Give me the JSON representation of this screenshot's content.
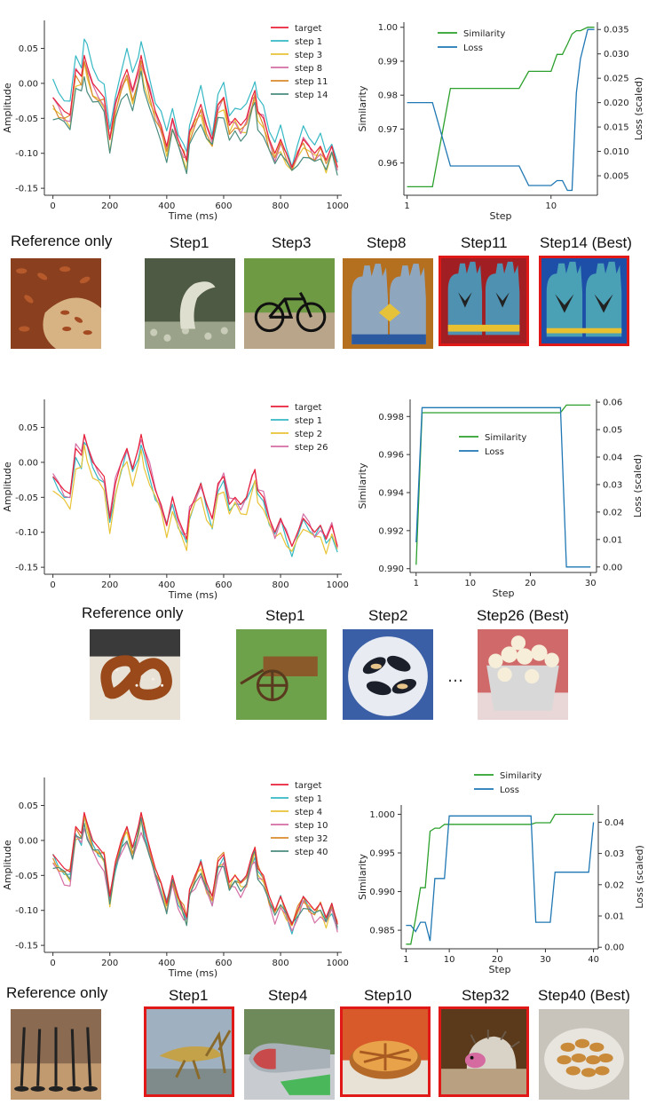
{
  "chart_data": [
    {
      "type": "line",
      "title": "",
      "xlabel": "Time (ms)",
      "ylabel": "Amplitude",
      "xlim": [
        -30,
        1015
      ],
      "ylim": [
        -0.16,
        0.09
      ],
      "xticks": [
        "0",
        "200",
        "400",
        "600",
        "800",
        "1000"
      ],
      "yticks": [
        "0.05",
        "0.00",
        "-0.05",
        "-0.10",
        "-0.15"
      ],
      "legend_position": "upper-right",
      "series": [
        {
          "name": "target",
          "color": "#e8203a"
        },
        {
          "name": "step 1",
          "color": "#35b8c4"
        },
        {
          "name": "step 3",
          "color": "#e8c336"
        },
        {
          "name": "step 8",
          "color": "#d56ea5"
        },
        {
          "name": "step 11",
          "color": "#d98a2b"
        },
        {
          "name": "step 14",
          "color": "#4a8c7e"
        }
      ],
      "x": [
        0,
        20,
        40,
        60,
        80,
        100,
        110,
        120,
        140,
        160,
        180,
        200,
        220,
        240,
        260,
        280,
        300,
        310,
        320,
        340,
        360,
        380,
        400,
        420,
        440,
        460,
        470,
        480,
        500,
        520,
        540,
        560,
        580,
        600,
        620,
        640,
        660,
        680,
        700,
        710,
        720,
        740,
        760,
        780,
        800,
        820,
        840,
        860,
        880,
        900,
        920,
        940,
        960,
        980,
        1000
      ],
      "target_values": [
        -0.02,
        -0.03,
        -0.04,
        -0.045,
        0.02,
        0.01,
        0.04,
        0.025,
        0.0,
        -0.01,
        -0.02,
        -0.08,
        -0.03,
        0.0,
        0.02,
        -0.01,
        0.02,
        0.04,
        0.02,
        -0.01,
        -0.04,
        -0.06,
        -0.09,
        -0.05,
        -0.08,
        -0.1,
        -0.11,
        -0.07,
        -0.05,
        -0.03,
        -0.06,
        -0.08,
        -0.03,
        -0.02,
        -0.06,
        -0.05,
        -0.06,
        -0.05,
        -0.02,
        -0.01,
        -0.04,
        -0.05,
        -0.08,
        -0.1,
        -0.08,
        -0.1,
        -0.12,
        -0.1,
        -0.08,
        -0.09,
        -0.1,
        -0.09,
        -0.11,
        -0.09,
        -0.12
      ],
      "offsets": [
        0.0,
        0.02,
        -0.015,
        -0.005,
        -0.01,
        -0.025
      ]
    },
    {
      "type": "line",
      "title": "",
      "xlabel": "Step",
      "ylabel": "Similarity",
      "y2label": "Loss (scaled)",
      "xscale": "log",
      "xticks": [
        "1",
        "10"
      ],
      "yticks": [
        "0.96",
        "0.97",
        "0.98",
        "0.99",
        "1.00"
      ],
      "y2ticks": [
        "0.005",
        "0.010",
        "0.015",
        "0.020",
        "0.025",
        "0.030",
        "0.035"
      ],
      "ylim": [
        0.9505,
        1.0015
      ],
      "y2lim": [
        0.001,
        0.0365
      ],
      "legend_position": "upper-center",
      "series": [
        {
          "name": "Similarity",
          "color": "#2ca02c",
          "axis": "left",
          "x": [
            1,
            1.5,
            2,
            3,
            4,
            5,
            6,
            7,
            8,
            9,
            10,
            11,
            12,
            13,
            14,
            15,
            16,
            18,
            20
          ],
          "values": [
            0.953,
            0.953,
            0.982,
            0.982,
            0.982,
            0.982,
            0.982,
            0.987,
            0.987,
            0.987,
            0.987,
            0.992,
            0.992,
            0.995,
            0.998,
            0.999,
            0.999,
            1.0,
            1.0
          ]
        },
        {
          "name": "Loss",
          "color": "#1f77b4",
          "axis": "right",
          "x": [
            1,
            1.5,
            2,
            3,
            4,
            5,
            6,
            7,
            8,
            9,
            10,
            11,
            12,
            13,
            14,
            15,
            16,
            18,
            20
          ],
          "values": [
            0.02,
            0.02,
            0.007,
            0.007,
            0.007,
            0.007,
            0.007,
            0.003,
            0.003,
            0.003,
            0.003,
            0.004,
            0.004,
            0.002,
            0.002,
            0.022,
            0.029,
            0.035,
            0.035
          ]
        }
      ]
    },
    {
      "type": "line",
      "title": "",
      "xlabel": "Time (ms)",
      "ylabel": "Amplitude",
      "xlim": [
        -30,
        1015
      ],
      "ylim": [
        -0.16,
        0.09
      ],
      "xticks": [
        "0",
        "200",
        "400",
        "600",
        "800",
        "1000"
      ],
      "yticks": [
        "0.05",
        "0.00",
        "-0.05",
        "-0.10",
        "-0.15"
      ],
      "legend_position": "upper-right",
      "series": [
        {
          "name": "target",
          "color": "#e8203a"
        },
        {
          "name": "step 1",
          "color": "#35b8c4"
        },
        {
          "name": "step 2",
          "color": "#e8c336"
        },
        {
          "name": "step 26",
          "color": "#d56ea5"
        }
      ],
      "x": [
        0,
        20,
        40,
        60,
        80,
        100,
        110,
        120,
        140,
        160,
        180,
        200,
        220,
        240,
        260,
        280,
        300,
        310,
        320,
        340,
        360,
        380,
        400,
        420,
        440,
        460,
        470,
        480,
        500,
        520,
        540,
        560,
        580,
        600,
        620,
        640,
        660,
        680,
        700,
        710,
        720,
        740,
        760,
        780,
        800,
        820,
        840,
        860,
        880,
        900,
        920,
        940,
        960,
        980,
        1000
      ],
      "target_values": [
        -0.02,
        -0.03,
        -0.04,
        -0.045,
        0.02,
        0.01,
        0.04,
        0.025,
        0.0,
        -0.01,
        -0.02,
        -0.08,
        -0.03,
        0.0,
        0.02,
        -0.01,
        0.02,
        0.04,
        0.02,
        -0.01,
        -0.04,
        -0.06,
        -0.09,
        -0.05,
        -0.08,
        -0.1,
        -0.11,
        -0.07,
        -0.05,
        -0.03,
        -0.06,
        -0.08,
        -0.03,
        -0.02,
        -0.06,
        -0.05,
        -0.06,
        -0.05,
        -0.02,
        -0.01,
        -0.04,
        -0.05,
        -0.08,
        -0.1,
        -0.08,
        -0.1,
        -0.12,
        -0.1,
        -0.08,
        -0.09,
        -0.1,
        -0.09,
        -0.11,
        -0.09,
        -0.12
      ],
      "offsets": [
        0.0,
        -0.01,
        -0.02,
        0.0
      ]
    },
    {
      "type": "line",
      "title": "",
      "xlabel": "Step",
      "ylabel": "Similarity",
      "y2label": "Loss (scaled)",
      "xticks": [
        "1",
        "10",
        "20",
        "30"
      ],
      "yticks": [
        "0.990",
        "0.992",
        "0.994",
        "0.996",
        "0.998"
      ],
      "y2ticks": [
        "0.00",
        "0.01",
        "0.02",
        "0.03",
        "0.04",
        "0.05",
        "0.06"
      ],
      "xlim": [
        0,
        31
      ],
      "ylim": [
        0.9898,
        0.9989
      ],
      "y2lim": [
        -0.002,
        0.061
      ],
      "legend_position": "center",
      "series": [
        {
          "name": "Similarity",
          "color": "#2ca02c",
          "axis": "left",
          "x": [
            1,
            2,
            3,
            25,
            26,
            30
          ],
          "values": [
            0.9902,
            0.9982,
            0.9982,
            0.9982,
            0.9986,
            0.9986
          ]
        },
        {
          "name": "Loss",
          "color": "#1f77b4",
          "axis": "right",
          "x": [
            1,
            2,
            3,
            25,
            26,
            30
          ],
          "values": [
            0.009,
            0.058,
            0.058,
            0.058,
            0.0,
            0.0
          ]
        }
      ]
    },
    {
      "type": "line",
      "title": "",
      "xlabel": "Time (ms)",
      "ylabel": "Amplitude",
      "xlim": [
        -30,
        1015
      ],
      "ylim": [
        -0.16,
        0.09
      ],
      "xticks": [
        "0",
        "200",
        "400",
        "600",
        "800",
        "1000"
      ],
      "yticks": [
        "0.05",
        "0.00",
        "-0.05",
        "-0.10",
        "-0.15"
      ],
      "legend_position": "upper-right",
      "series": [
        {
          "name": "target",
          "color": "#e8203a"
        },
        {
          "name": "step 1",
          "color": "#35b8c4"
        },
        {
          "name": "step 4",
          "color": "#e8c336"
        },
        {
          "name": "step 10",
          "color": "#d56ea5"
        },
        {
          "name": "step 32",
          "color": "#d98a2b"
        },
        {
          "name": "step 40",
          "color": "#4a8c7e"
        }
      ],
      "x": [
        0,
        20,
        40,
        60,
        80,
        100,
        110,
        120,
        140,
        160,
        180,
        200,
        220,
        240,
        260,
        280,
        300,
        310,
        320,
        340,
        360,
        380,
        400,
        420,
        440,
        460,
        470,
        480,
        500,
        520,
        540,
        560,
        580,
        600,
        620,
        640,
        660,
        680,
        700,
        710,
        720,
        740,
        760,
        780,
        800,
        820,
        840,
        860,
        880,
        900,
        920,
        940,
        960,
        980,
        1000
      ],
      "target_values": [
        -0.02,
        -0.03,
        -0.04,
        -0.045,
        0.02,
        0.01,
        0.04,
        0.025,
        0.0,
        -0.01,
        -0.02,
        -0.08,
        -0.03,
        0.0,
        0.02,
        -0.01,
        0.02,
        0.04,
        0.02,
        -0.01,
        -0.04,
        -0.06,
        -0.09,
        -0.05,
        -0.08,
        -0.1,
        -0.11,
        -0.07,
        -0.05,
        -0.03,
        -0.06,
        -0.08,
        -0.03,
        -0.02,
        -0.06,
        -0.05,
        -0.06,
        -0.05,
        -0.02,
        -0.01,
        -0.04,
        -0.05,
        -0.08,
        -0.1,
        -0.08,
        -0.1,
        -0.12,
        -0.1,
        -0.08,
        -0.09,
        -0.1,
        -0.09,
        -0.11,
        -0.09,
        -0.12
      ],
      "offsets": [
        0.0,
        -0.008,
        -0.01,
        -0.018,
        -0.004,
        -0.012
      ]
    },
    {
      "type": "line",
      "title": "",
      "xlabel": "Step",
      "ylabel": "Similarity",
      "y2label": "Loss (scaled)",
      "xticks": [
        "1",
        "10",
        "20",
        "30",
        "40"
      ],
      "yticks": [
        "0.985",
        "0.990",
        "0.995",
        "1.000"
      ],
      "y2ticks": [
        "0.00",
        "0.01",
        "0.02",
        "0.03",
        "0.04"
      ],
      "xlim": [
        0,
        41
      ],
      "ylim": [
        0.9826,
        1.0012
      ],
      "y2lim": [
        -0.0005,
        0.0455
      ],
      "legend_position": "upper-right-outside",
      "series": [
        {
          "name": "Similarity",
          "color": "#2ca02c",
          "axis": "left",
          "x": [
            1,
            2,
            3,
            4,
            5,
            6,
            7,
            8,
            9,
            10,
            27,
            28,
            31,
            32,
            40
          ],
          "values": [
            0.9832,
            0.9832,
            0.9865,
            0.9905,
            0.9905,
            0.9978,
            0.9982,
            0.9982,
            0.9987,
            0.9987,
            0.9987,
            0.9989,
            0.9989,
            1.0,
            1.0
          ]
        },
        {
          "name": "Loss",
          "color": "#1f77b4",
          "axis": "right",
          "x": [
            1,
            2,
            3,
            4,
            5,
            6,
            7,
            8,
            9,
            10,
            27,
            28,
            31,
            32,
            39,
            40
          ],
          "values": [
            0.007,
            0.007,
            0.005,
            0.008,
            0.008,
            0.002,
            0.022,
            0.022,
            0.022,
            0.042,
            0.042,
            0.008,
            0.008,
            0.024,
            0.024,
            0.04
          ]
        }
      ]
    }
  ],
  "panels": [
    {
      "reference_label": "Reference only",
      "steps": [
        {
          "label": "Step1",
          "icon": "fish-icon",
          "selected": false
        },
        {
          "label": "Step3",
          "icon": "bicycle-icon",
          "selected": false
        },
        {
          "label": "Step8",
          "icon": "gloves-icon",
          "selected": false
        },
        {
          "label": "Step11",
          "icon": "gloves-icon",
          "selected": true
        },
        {
          "label": "Step14 (Best)",
          "icon": "gloves-icon",
          "selected": true
        }
      ]
    },
    {
      "reference_label": "Reference only",
      "ellipsis": "…",
      "steps": [
        {
          "label": "Step1",
          "icon": "cart-icon",
          "selected": false
        },
        {
          "label": "Step2",
          "icon": "mussels-icon",
          "selected": false
        },
        {
          "label": "Step26 (Best)",
          "icon": "popcorn-icon",
          "selected": false
        }
      ]
    },
    {
      "reference_label": "Reference only",
      "steps": [
        {
          "label": "Step1",
          "icon": "grasshopper-icon",
          "selected": true
        },
        {
          "label": "Step4",
          "icon": "sleeping-bag-icon",
          "selected": false
        },
        {
          "label": "Step10",
          "icon": "pie-icon",
          "selected": true
        },
        {
          "label": "Step32",
          "icon": "hedgehog-icon",
          "selected": true
        },
        {
          "label": "Step40 (Best)",
          "icon": "cashew-icon",
          "selected": false
        }
      ]
    }
  ]
}
